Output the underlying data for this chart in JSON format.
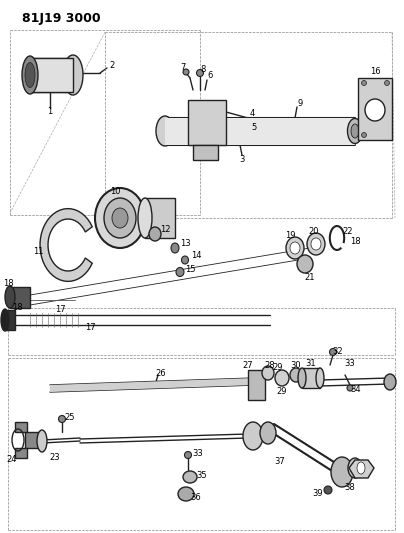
{
  "title": "81J19 3000",
  "bg_color": "#ffffff",
  "line_color": "#222222",
  "label_color": "#000000",
  "title_fontsize": 9,
  "label_fontsize": 6,
  "figsize": [
    4.04,
    5.33
  ],
  "dpi": 100
}
